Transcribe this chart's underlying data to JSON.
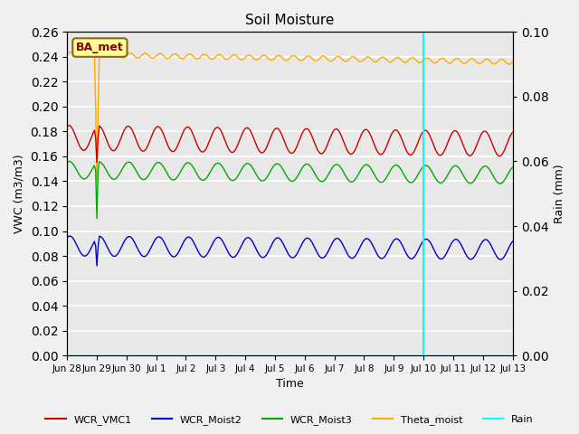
{
  "title": "Soil Moisture",
  "ylabel_left": "VWC (m3/m3)",
  "ylabel_right": "Rain (mm)",
  "xlabel": "Time",
  "plot_bg_color": "#e8e8e8",
  "fig_bg_color": "#f0f0f0",
  "ylim_left": [
    0.0,
    0.26
  ],
  "ylim_right": [
    0.0,
    0.1
  ],
  "yticks_left": [
    0.0,
    0.02,
    0.04,
    0.06,
    0.08,
    0.1,
    0.12,
    0.14,
    0.16,
    0.18,
    0.2,
    0.22,
    0.24,
    0.26
  ],
  "yticks_right": [
    0.0,
    0.02,
    0.04,
    0.06,
    0.08,
    0.1
  ],
  "station_label": "BA_met",
  "station_label_color": "#8b0000",
  "station_box_facecolor": "#ffff99",
  "station_box_edgecolor": "#8b6914",
  "vline_color": "cyan",
  "vline_x_index": 12,
  "colors": {
    "WCR_VMC1": "#cc0000",
    "WCR_Moist2": "#0000cc",
    "WCR_Moist3": "#00aa00",
    "Theta_moist": "#ffaa00",
    "Rain": "cyan"
  },
  "legend_labels": [
    "WCR_VMC1",
    "WCR_Moist2",
    "WCR_Moist3",
    "Theta_moist",
    "Rain"
  ],
  "num_days": 15,
  "xtick_labels": [
    "Jun 28",
    "Jun 29",
    "Jun 30",
    "Jul 1",
    "Jul 2",
    "Jul 3",
    "Jul 4",
    "Jul 5",
    "Jul 6",
    "Jul 7",
    "Jul 8",
    "Jul 9",
    "Jul 10",
    "Jul 11",
    "Jul 12",
    "Jul 13"
  ]
}
